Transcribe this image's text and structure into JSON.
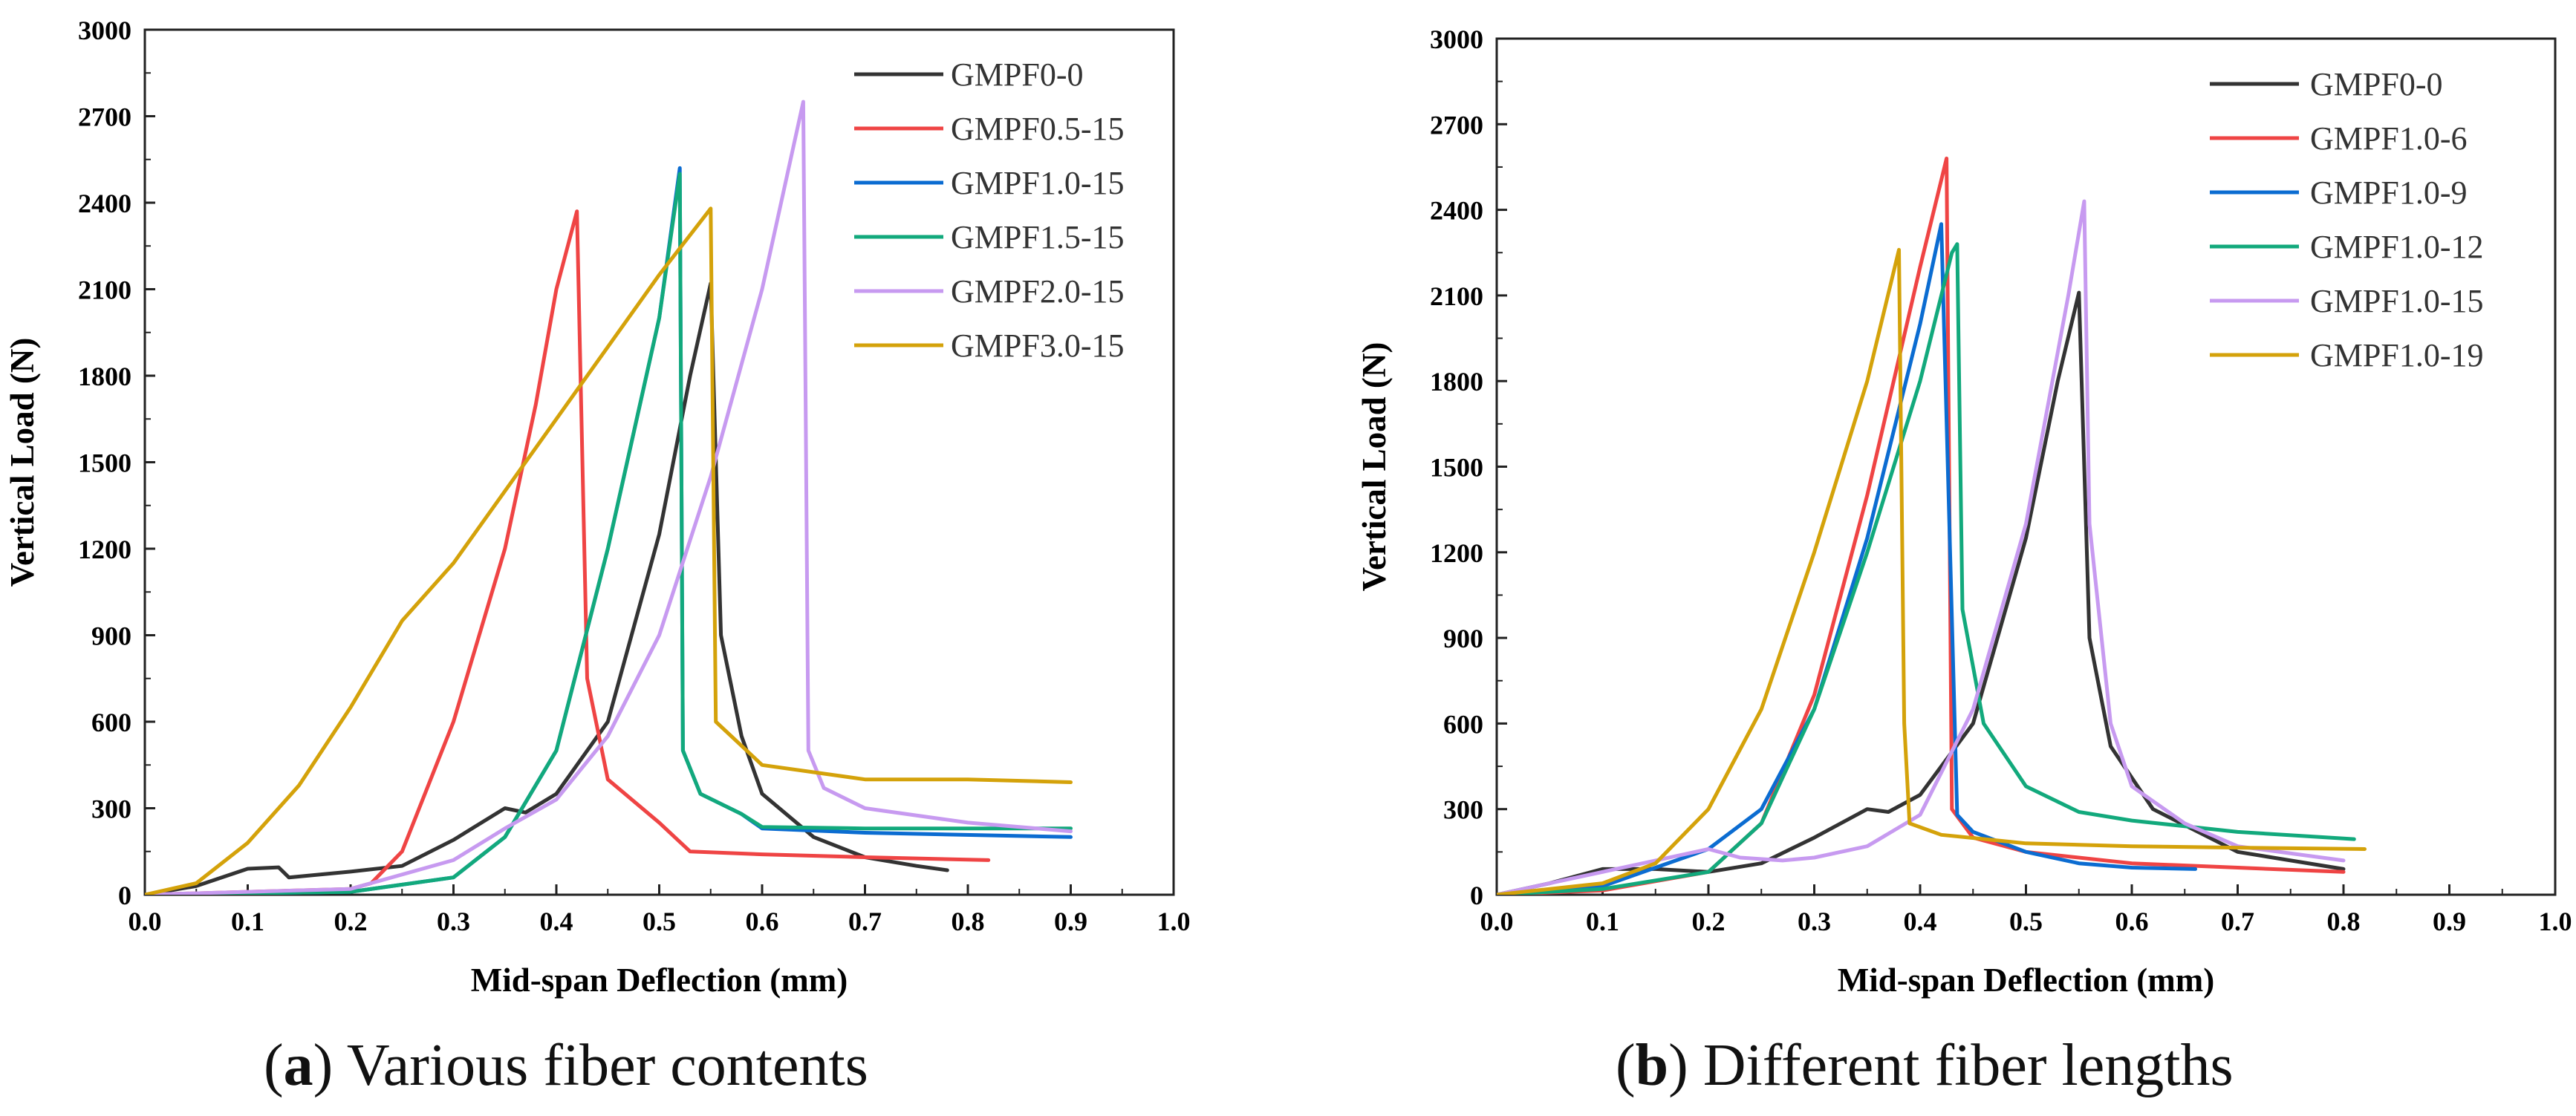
{
  "colors": [
    "#333333",
    "#ef4444",
    "#0b6cd1",
    "#12a97c",
    "#c79af0",
    "#d4a20a"
  ],
  "captions": [
    {
      "letter": "a",
      "text": "Various fiber contents"
    },
    {
      "letter": "b",
      "text": "Different fiber lengths"
    }
  ],
  "chart_data": [
    {
      "type": "line",
      "xlabel": "Mid-span Deflection (mm)",
      "ylabel": "Vertical Load (N)",
      "xlim": [
        0.0,
        1.0
      ],
      "ylim": [
        0,
        3000
      ],
      "xticks": [
        0.0,
        0.1,
        0.2,
        0.3,
        0.4,
        0.5,
        0.6,
        0.7,
        0.8,
        0.9,
        1.0
      ],
      "yticks": [
        0,
        300,
        600,
        900,
        1200,
        1500,
        1800,
        2100,
        2400,
        2700,
        3000
      ],
      "legend_position": "top-right",
      "grid": false,
      "series": [
        {
          "name": "GMPF0-0",
          "color": "#333333",
          "points": [
            [
              0,
              0
            ],
            [
              0.05,
              30
            ],
            [
              0.1,
              90
            ],
            [
              0.13,
              95
            ],
            [
              0.14,
              60
            ],
            [
              0.2,
              80
            ],
            [
              0.25,
              100
            ],
            [
              0.3,
              190
            ],
            [
              0.35,
              300
            ],
            [
              0.37,
              285
            ],
            [
              0.4,
              350
            ],
            [
              0.45,
              600
            ],
            [
              0.5,
              1250
            ],
            [
              0.53,
              1800
            ],
            [
              0.55,
              2120
            ],
            [
              0.56,
              900
            ],
            [
              0.58,
              550
            ],
            [
              0.6,
              350
            ],
            [
              0.65,
              200
            ],
            [
              0.7,
              130
            ],
            [
              0.75,
              100
            ],
            [
              0.78,
              85
            ]
          ]
        },
        {
          "name": "GMPF0.5-15",
          "color": "#ef4444",
          "points": [
            [
              0,
              0
            ],
            [
              0.1,
              10
            ],
            [
              0.2,
              20
            ],
            [
              0.22,
              40
            ],
            [
              0.25,
              150
            ],
            [
              0.3,
              600
            ],
            [
              0.35,
              1200
            ],
            [
              0.38,
              1700
            ],
            [
              0.4,
              2100
            ],
            [
              0.42,
              2370
            ],
            [
              0.43,
              750
            ],
            [
              0.45,
              400
            ],
            [
              0.5,
              250
            ],
            [
              0.53,
              150
            ],
            [
              0.6,
              140
            ],
            [
              0.7,
              130
            ],
            [
              0.82,
              120
            ]
          ]
        },
        {
          "name": "GMPF1.0-15",
          "color": "#0b6cd1",
          "points": [
            [
              0,
              0
            ],
            [
              0.2,
              10
            ],
            [
              0.3,
              60
            ],
            [
              0.35,
              200
            ],
            [
              0.4,
              500
            ],
            [
              0.45,
              1200
            ],
            [
              0.5,
              2000
            ],
            [
              0.52,
              2520
            ],
            [
              0.523,
              500
            ],
            [
              0.54,
              350
            ],
            [
              0.58,
              280
            ],
            [
              0.6,
              230
            ],
            [
              0.7,
              215
            ],
            [
              0.9,
              200
            ]
          ]
        },
        {
          "name": "GMPF1.5-15",
          "color": "#12a97c",
          "points": [
            [
              0,
              0
            ],
            [
              0.2,
              10
            ],
            [
              0.3,
              60
            ],
            [
              0.35,
              200
            ],
            [
              0.4,
              500
            ],
            [
              0.45,
              1200
            ],
            [
              0.5,
              2000
            ],
            [
              0.52,
              2500
            ],
            [
              0.523,
              500
            ],
            [
              0.54,
              350
            ],
            [
              0.58,
              280
            ],
            [
              0.6,
              235
            ],
            [
              0.7,
              230
            ],
            [
              0.9,
              230
            ]
          ]
        },
        {
          "name": "GMPF2.0-15",
          "color": "#c79af0",
          "points": [
            [
              0,
              0
            ],
            [
              0.2,
              20
            ],
            [
              0.3,
              120
            ],
            [
              0.35,
              230
            ],
            [
              0.4,
              330
            ],
            [
              0.45,
              550
            ],
            [
              0.5,
              900
            ],
            [
              0.55,
              1450
            ],
            [
              0.6,
              2100
            ],
            [
              0.64,
              2750
            ],
            [
              0.645,
              500
            ],
            [
              0.66,
              370
            ],
            [
              0.7,
              300
            ],
            [
              0.8,
              250
            ],
            [
              0.9,
              220
            ]
          ]
        },
        {
          "name": "GMPF3.0-15",
          "color": "#d4a20a",
          "points": [
            [
              0,
              0
            ],
            [
              0.05,
              40
            ],
            [
              0.1,
              180
            ],
            [
              0.15,
              380
            ],
            [
              0.2,
              650
            ],
            [
              0.25,
              950
            ],
            [
              0.3,
              1150
            ],
            [
              0.35,
              1400
            ],
            [
              0.4,
              1650
            ],
            [
              0.45,
              1900
            ],
            [
              0.5,
              2150
            ],
            [
              0.55,
              2380
            ],
            [
              0.555,
              600
            ],
            [
              0.6,
              450
            ],
            [
              0.7,
              400
            ],
            [
              0.8,
              400
            ],
            [
              0.9,
              390
            ]
          ]
        }
      ]
    },
    {
      "type": "line",
      "xlabel": "Mid-span Deflection (mm)",
      "ylabel": "Vertical Load (N)",
      "xlim": [
        0.0,
        1.0
      ],
      "ylim": [
        0,
        3000
      ],
      "xticks": [
        0.0,
        0.1,
        0.2,
        0.3,
        0.4,
        0.5,
        0.6,
        0.7,
        0.8,
        0.9,
        1.0
      ],
      "yticks": [
        0,
        300,
        600,
        900,
        1200,
        1500,
        1800,
        2100,
        2400,
        2700,
        3000
      ],
      "legend_position": "top-right",
      "grid": false,
      "series": [
        {
          "name": "GMPF0-0",
          "color": "#333333",
          "points": [
            [
              0,
              0
            ],
            [
              0.05,
              40
            ],
            [
              0.1,
              90
            ],
            [
              0.15,
              90
            ],
            [
              0.2,
              80
            ],
            [
              0.25,
              110
            ],
            [
              0.3,
              200
            ],
            [
              0.35,
              300
            ],
            [
              0.37,
              290
            ],
            [
              0.4,
              350
            ],
            [
              0.45,
              600
            ],
            [
              0.5,
              1250
            ],
            [
              0.53,
              1800
            ],
            [
              0.55,
              2110
            ],
            [
              0.56,
              900
            ],
            [
              0.58,
              520
            ],
            [
              0.62,
              300
            ],
            [
              0.7,
              150
            ],
            [
              0.8,
              90
            ]
          ]
        },
        {
          "name": "GMPF1.0-6",
          "color": "#ef4444",
          "points": [
            [
              0,
              0
            ],
            [
              0.1,
              15
            ],
            [
              0.2,
              80
            ],
            [
              0.25,
              250
            ],
            [
              0.3,
              700
            ],
            [
              0.35,
              1400
            ],
            [
              0.4,
              2200
            ],
            [
              0.425,
              2580
            ],
            [
              0.43,
              300
            ],
            [
              0.45,
              200
            ],
            [
              0.5,
              150
            ],
            [
              0.6,
              110
            ],
            [
              0.7,
              95
            ],
            [
              0.8,
              80
            ]
          ]
        },
        {
          "name": "GMPF1.0-9",
          "color": "#0b6cd1",
          "points": [
            [
              0,
              0
            ],
            [
              0.1,
              30
            ],
            [
              0.2,
              160
            ],
            [
              0.25,
              300
            ],
            [
              0.3,
              650
            ],
            [
              0.35,
              1250
            ],
            [
              0.4,
              2000
            ],
            [
              0.42,
              2350
            ],
            [
              0.435,
              280
            ],
            [
              0.45,
              220
            ],
            [
              0.5,
              150
            ],
            [
              0.55,
              110
            ],
            [
              0.6,
              95
            ],
            [
              0.66,
              90
            ]
          ]
        },
        {
          "name": "GMPF1.0-12",
          "color": "#12a97c",
          "points": [
            [
              0,
              0
            ],
            [
              0.1,
              20
            ],
            [
              0.2,
              80
            ],
            [
              0.25,
              250
            ],
            [
              0.3,
              650
            ],
            [
              0.35,
              1200
            ],
            [
              0.4,
              1800
            ],
            [
              0.43,
              2250
            ],
            [
              0.435,
              2280
            ],
            [
              0.44,
              1000
            ],
            [
              0.46,
              600
            ],
            [
              0.5,
              380
            ],
            [
              0.55,
              290
            ],
            [
              0.6,
              260
            ],
            [
              0.7,
              220
            ],
            [
              0.81,
              195
            ]
          ]
        },
        {
          "name": "GMPF1.0-15",
          "color": "#c79af0",
          "points": [
            [
              0,
              0
            ],
            [
              0.05,
              40
            ],
            [
              0.1,
              80
            ],
            [
              0.15,
              120
            ],
            [
              0.2,
              160
            ],
            [
              0.23,
              130
            ],
            [
              0.27,
              120
            ],
            [
              0.3,
              130
            ],
            [
              0.35,
              170
            ],
            [
              0.4,
              280
            ],
            [
              0.45,
              650
            ],
            [
              0.5,
              1300
            ],
            [
              0.54,
              2100
            ],
            [
              0.555,
              2430
            ],
            [
              0.56,
              1300
            ],
            [
              0.58,
              600
            ],
            [
              0.6,
              380
            ],
            [
              0.65,
              250
            ],
            [
              0.7,
              170
            ],
            [
              0.8,
              120
            ]
          ]
        },
        {
          "name": "GMPF1.0-19",
          "color": "#d4a20a",
          "points": [
            [
              0,
              0
            ],
            [
              0.1,
              40
            ],
            [
              0.15,
              110
            ],
            [
              0.2,
              300
            ],
            [
              0.25,
              650
            ],
            [
              0.3,
              1200
            ],
            [
              0.35,
              1800
            ],
            [
              0.38,
              2260
            ],
            [
              0.385,
              600
            ],
            [
              0.39,
              250
            ],
            [
              0.42,
              210
            ],
            [
              0.5,
              180
            ],
            [
              0.6,
              170
            ],
            [
              0.7,
              165
            ],
            [
              0.82,
              160
            ]
          ]
        }
      ]
    }
  ]
}
